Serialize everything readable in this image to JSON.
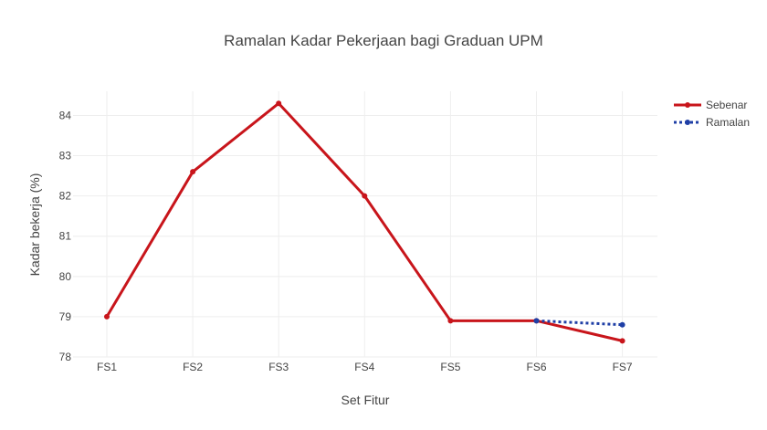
{
  "chart_data": {
    "type": "line",
    "title": "Ramalan Kadar Pekerjaan bagi Graduan UPM",
    "xlabel": "Set Fitur",
    "ylabel": "Kadar bekerja (%)",
    "categories": [
      "FS1",
      "FS2",
      "FS3",
      "FS4",
      "FS5",
      "FS6",
      "FS7"
    ],
    "ylim": [
      78,
      84.6
    ],
    "yticks": [
      78,
      79,
      80,
      81,
      82,
      83,
      84
    ],
    "grid": true,
    "legend_position": "top-right",
    "series": [
      {
        "name": "Sebenar",
        "color": "#c8151b",
        "style": "solid",
        "x": [
          "FS1",
          "FS2",
          "FS3",
          "FS4",
          "FS5",
          "FS6",
          "FS7"
        ],
        "values": [
          79.0,
          82.6,
          84.3,
          82.0,
          78.9,
          78.9,
          78.4
        ]
      },
      {
        "name": "Ramalan",
        "color": "#1f3fa6",
        "style": "dotted",
        "x": [
          "FS6",
          "FS7"
        ],
        "values": [
          78.9,
          78.8
        ]
      }
    ]
  }
}
